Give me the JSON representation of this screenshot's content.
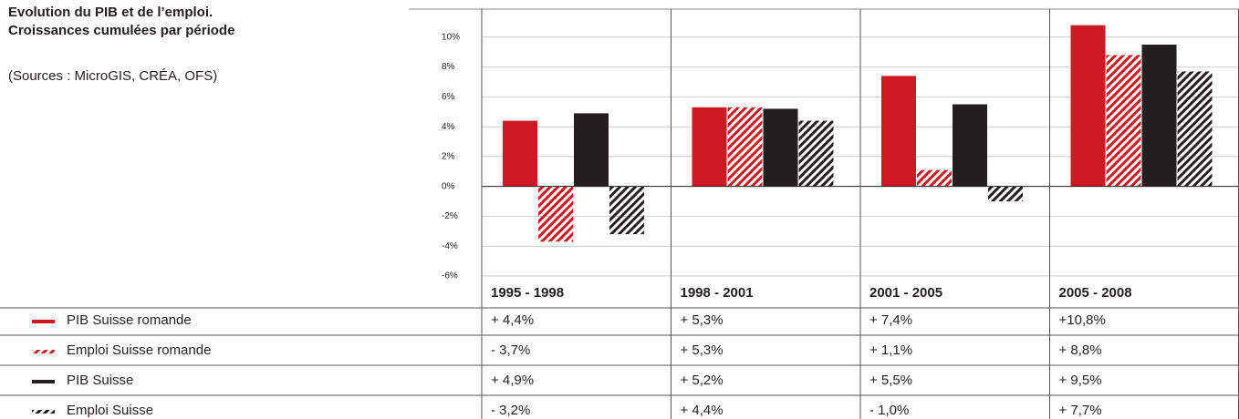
{
  "chart_data": {
    "type": "bar",
    "title": "Evolution du PIB et de l’emploi.",
    "subtitle": "Croissances cumulées par période",
    "source": "(Sources : MicroGIS, CRÉA, OFS)",
    "categories": [
      "1995 - 1998",
      "1998 - 2001",
      "2001 - 2005",
      "2005 - 2008"
    ],
    "series": [
      {
        "name": "PIB Suisse romande",
        "color": "#cc1a22",
        "hatch": false,
        "values": [
          4.4,
          5.3,
          7.4,
          10.8
        ],
        "value_labels": [
          "+ 4,4%",
          "+ 5,3%",
          "+ 7,4%",
          "+10,8%"
        ]
      },
      {
        "name": "Emploi Suisse romande",
        "color": "#cc1a22",
        "hatch": true,
        "values": [
          -3.7,
          5.3,
          1.1,
          8.8
        ],
        "value_labels": [
          "- 3,7%",
          "+ 5,3%",
          "+ 1,1%",
          "+ 8,8%"
        ]
      },
      {
        "name": "PIB Suisse",
        "color": "#231f20",
        "hatch": false,
        "values": [
          4.9,
          5.2,
          5.5,
          9.5
        ],
        "value_labels": [
          "+ 4,9%",
          "+ 5,2%",
          "+ 5,5%",
          "+ 9,5%"
        ]
      },
      {
        "name": "Emploi Suisse",
        "color": "#231f20",
        "hatch": true,
        "values": [
          -3.2,
          4.4,
          -1.0,
          7.7
        ],
        "value_labels": [
          "- 3,2%",
          "+ 4,4%",
          "- 1,0%",
          "+ 7,7%"
        ]
      }
    ],
    "ylim": [
      -6,
      12
    ],
    "yticks": [
      {
        "value": -6,
        "label": "-6%"
      },
      {
        "value": -4,
        "label": "-4%"
      },
      {
        "value": -2,
        "label": "-2%"
      },
      {
        "value": 0,
        "label": "0%"
      },
      {
        "value": 2,
        "label": "2%"
      },
      {
        "value": 4,
        "label": "4%"
      },
      {
        "value": 6,
        "label": "6%"
      },
      {
        "value": 8,
        "label": "8%"
      },
      {
        "value": 10,
        "label": "10%"
      }
    ],
    "grid": true
  }
}
